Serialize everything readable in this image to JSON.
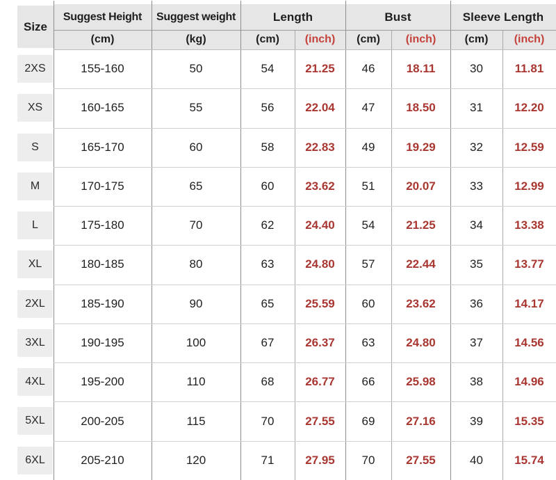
{
  "colors": {
    "header_bg": "#e6e6e6",
    "size_chip_bg": "#ededed",
    "red_header": "#c4423b",
    "red_value": "#a93630",
    "text": "#1e1e1e",
    "grid_strong": "#8e8e8e",
    "grid_light": "#cfcfcf"
  },
  "chart_data": {
    "type": "table",
    "title": "Garment size chart",
    "corner_label": "Size",
    "groups": [
      {
        "label": "Suggest Height",
        "subs": [
          "(cm)"
        ]
      },
      {
        "label": "Suggest weight",
        "subs": [
          "(kg)"
        ]
      },
      {
        "label": "Length",
        "subs": [
          "(cm)",
          "(inch)"
        ]
      },
      {
        "label": "Bust",
        "subs": [
          "(cm)",
          "(inch)"
        ]
      },
      {
        "label": "Sleeve Length",
        "subs": [
          "(cm)",
          "(inch)"
        ]
      }
    ],
    "columns": [
      "Size",
      "Suggest Height (cm)",
      "Suggest weight (kg)",
      "Length (cm)",
      "Length (inch)",
      "Bust (cm)",
      "Bust (inch)",
      "Sleeve Length (cm)",
      "Sleeve Length (inch)"
    ],
    "rows": [
      {
        "size": "2XS",
        "values": [
          "155-160",
          "50",
          "54",
          "21.25",
          "46",
          "18.11",
          "30",
          "11.81"
        ]
      },
      {
        "size": "XS",
        "values": [
          "160-165",
          "55",
          "56",
          "22.04",
          "47",
          "18.50",
          "31",
          "12.20"
        ]
      },
      {
        "size": "S",
        "values": [
          "165-170",
          "60",
          "58",
          "22.83",
          "49",
          "19.29",
          "32",
          "12.59"
        ]
      },
      {
        "size": "M",
        "values": [
          "170-175",
          "65",
          "60",
          "23.62",
          "51",
          "20.07",
          "33",
          "12.99"
        ]
      },
      {
        "size": "L",
        "values": [
          "175-180",
          "70",
          "62",
          "24.40",
          "54",
          "21.25",
          "34",
          "13.38"
        ]
      },
      {
        "size": "XL",
        "values": [
          "180-185",
          "80",
          "63",
          "24.80",
          "57",
          "22.44",
          "35",
          "13.77"
        ]
      },
      {
        "size": "2XL",
        "values": [
          "185-190",
          "90",
          "65",
          "25.59",
          "60",
          "23.62",
          "36",
          "14.17"
        ]
      },
      {
        "size": "3XL",
        "values": [
          "190-195",
          "100",
          "67",
          "26.37",
          "63",
          "24.80",
          "37",
          "14.56"
        ]
      },
      {
        "size": "4XL",
        "values": [
          "195-200",
          "110",
          "68",
          "26.77",
          "66",
          "25.98",
          "38",
          "14.96"
        ]
      },
      {
        "size": "5XL",
        "values": [
          "200-205",
          "115",
          "70",
          "27.55",
          "69",
          "27.16",
          "39",
          "15.35"
        ]
      },
      {
        "size": "6XL",
        "values": [
          "205-210",
          "120",
          "71",
          "27.95",
          "70",
          "27.55",
          "40",
          "15.74"
        ]
      }
    ]
  }
}
